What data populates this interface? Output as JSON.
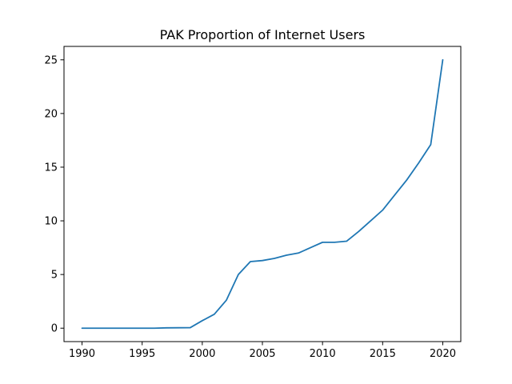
{
  "chart_data": {
    "type": "line",
    "title": "PAK Proportion of Internet Users",
    "xlabel": "",
    "ylabel": "",
    "xlim": [
      1988.5,
      2021.5
    ],
    "ylim": [
      -1.25,
      26.25
    ],
    "x_ticks": [
      1990,
      1995,
      2000,
      2005,
      2010,
      2015,
      2020
    ],
    "y_ticks": [
      0,
      5,
      10,
      15,
      20,
      25
    ],
    "grid": false,
    "legend": "none",
    "series": [
      {
        "color": "#1f77b4",
        "x": [
          1990,
          1991,
          1992,
          1993,
          1994,
          1995,
          1996,
          1997,
          1998,
          1999,
          2000,
          2001,
          2002,
          2003,
          2004,
          2005,
          2006,
          2007,
          2008,
          2009,
          2010,
          2011,
          2012,
          2013,
          2014,
          2015,
          2016,
          2017,
          2018,
          2019,
          2020
        ],
        "values": [
          0,
          0,
          0,
          0,
          0,
          0,
          0,
          0.03,
          0.04,
          0.05,
          0.7,
          1.3,
          2.6,
          5.0,
          6.2,
          6.3,
          6.5,
          6.8,
          7.0,
          7.5,
          8.0,
          8.0,
          8.1,
          9.0,
          10.0,
          11.0,
          12.4,
          13.8,
          15.4,
          17.1,
          25.0
        ]
      }
    ]
  }
}
